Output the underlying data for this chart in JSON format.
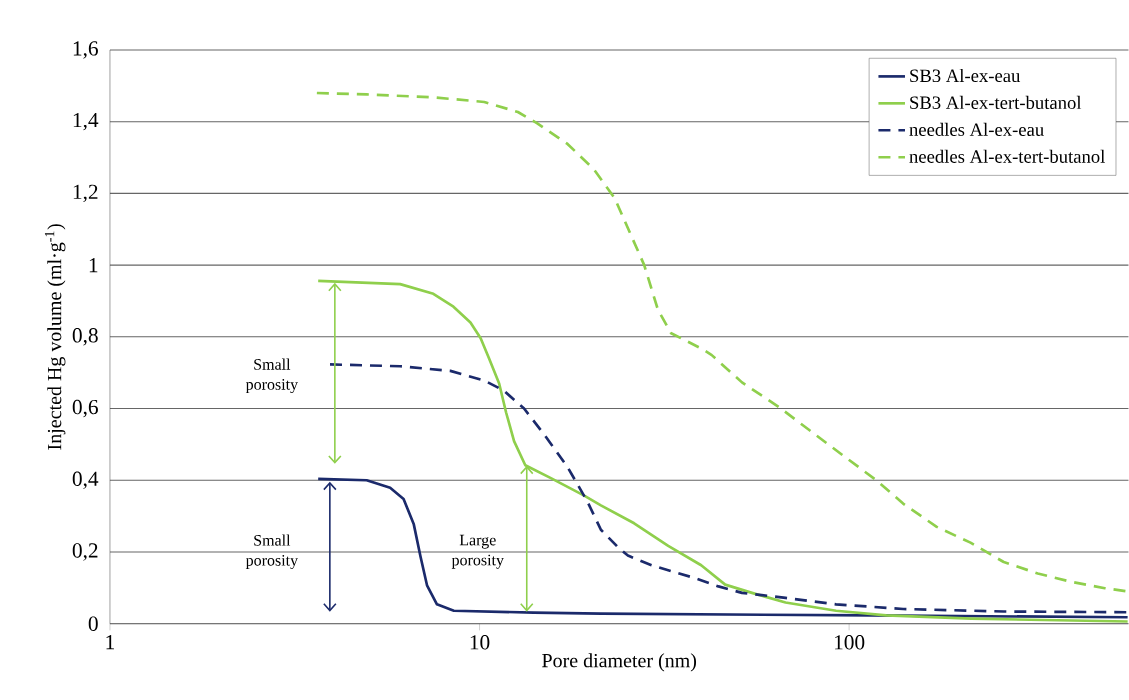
{
  "chart_data": {
    "type": "line",
    "xlabel": "Pore diameter (nm)",
    "ylabel": "Injected Hg volume (ml·g$^{-1}$)",
    "log": "x",
    "xlim": [
      1,
      570
    ],
    "xticks": [
      1,
      10,
      100
    ],
    "ylim": [
      0,
      1.6
    ],
    "yticks": [
      0,
      {
        "value": 0.2,
        "label": "0,2"
      },
      {
        "value": 0.4,
        "label": "0,4"
      },
      {
        "value": 0.6,
        "label": "0,6"
      },
      {
        "value": 0.8,
        "label": "0,8"
      },
      1,
      {
        "value": 1.2,
        "label": "1,2"
      },
      {
        "value": 1.4,
        "label": "1,4"
      },
      {
        "value": 1.6,
        "label": "1,6"
      }
    ],
    "grid": "y",
    "legend": "top right",
    "series": [
      {
        "name": "SB3 Al-ex-eau",
        "color": "#1b2a6b",
        "line_style": "solid",
        "x": [
          3.66,
          4.95,
          5.73,
          6.23,
          6.64,
          6.92,
          7.21,
          7.67,
          8.52,
          14,
          21.3,
          115,
          567
        ],
        "values": [
          0.404,
          0.4,
          0.379,
          0.348,
          0.277,
          0.188,
          0.107,
          0.054,
          0.036,
          0.031,
          0.028,
          0.023,
          0.018
        ]
      },
      {
        "name": "SB3 Al-ex-tert-butanol",
        "color": "#8fcf4c",
        "line_style": "solid",
        "x": [
          3.66,
          6.1,
          7.5,
          8.5,
          9.45,
          10.07,
          10.6,
          11.3,
          11.8,
          12.4,
          13.3,
          15.6,
          19.2,
          21.3,
          26.2,
          32.4,
          39.8,
          46.2,
          54.6,
          67.3,
          92.2,
          126,
          214,
          567
        ],
        "values": [
          0.956,
          0.947,
          0.92,
          0.884,
          0.84,
          0.796,
          0.741,
          0.67,
          0.589,
          0.509,
          0.442,
          0.406,
          0.357,
          0.33,
          0.28,
          0.217,
          0.163,
          0.109,
          0.086,
          0.059,
          0.036,
          0.023,
          0.014,
          0.006
        ]
      },
      {
        "name": "needles Al-ex-eau",
        "color": "#1b2a6b",
        "line_style": "dashed",
        "x": [
          3.94,
          6.1,
          8.34,
          10.3,
          11.6,
          13.2,
          15,
          17.3,
          19.6,
          21.3,
          23.6,
          25.2,
          29.2,
          32.4,
          38.3,
          44.3,
          51.3,
          67.3,
          92.2,
          140,
          262,
          567
        ],
        "values": [
          0.723,
          0.718,
          0.705,
          0.678,
          0.651,
          0.6,
          0.526,
          0.437,
          0.34,
          0.262,
          0.215,
          0.19,
          0.163,
          0.149,
          0.127,
          0.104,
          0.086,
          0.072,
          0.054,
          0.041,
          0.034,
          0.032
        ]
      },
      {
        "name": "needles Al-ex-tert-butanol",
        "color": "#8fcf4c",
        "line_style": "dashed",
        "x": [
          3.63,
          4.95,
          7.5,
          10.3,
          12.7,
          14.3,
          17.3,
          20.4,
          23.2,
          27.9,
          30.4,
          33.0,
          39.9,
          42.5,
          51.3,
          64.6,
          78,
          96,
          118.5,
          140,
          172.6,
          213,
          262,
          324,
          398,
          492,
          567
        ],
        "values": [
          1.48,
          1.476,
          1.468,
          1.455,
          1.427,
          1.396,
          1.338,
          1.267,
          1.187,
          1.0,
          0.875,
          0.81,
          0.767,
          0.749,
          0.673,
          0.604,
          0.54,
          0.47,
          0.4,
          0.335,
          0.27,
          0.226,
          0.172,
          0.14,
          0.117,
          0.099,
          0.09
        ]
      }
    ],
    "annotations": [
      "Small porosity",
      "Small porosity",
      "Large porosity"
    ]
  }
}
